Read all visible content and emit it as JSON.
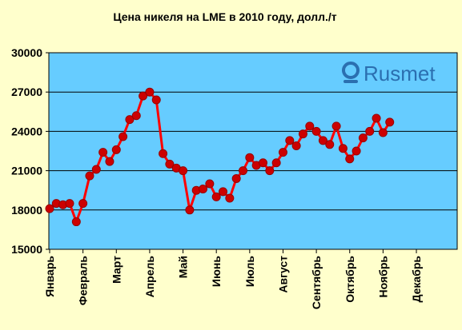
{
  "chart_data": {
    "type": "line",
    "title": "Цена никеля на LME в 2010 году, долл./т",
    "xlabel": "",
    "ylabel": "",
    "ylim": [
      15000,
      30000
    ],
    "yticks": [
      15000,
      18000,
      21000,
      24000,
      27000,
      30000
    ],
    "ytick_labels": [
      "15000",
      "18000",
      "21000",
      "24000",
      "27000",
      "30000"
    ],
    "grid": true,
    "legend": "none",
    "x_range": [
      0,
      61
    ],
    "month_labels": [
      "Январь",
      "Февраль",
      "Март",
      "Апрель",
      "Май",
      "Июнь",
      "Июль",
      "Август",
      "Сентябрь",
      "Октябрь",
      "Ноябрь",
      "Декабрь"
    ],
    "month_positions": [
      0,
      5,
      10,
      15,
      20,
      25,
      30,
      35,
      40,
      45,
      50,
      55
    ],
    "series": [
      {
        "color": "#ff0000",
        "marker_color": "#cc0000",
        "values": [
          18100,
          18500,
          18400,
          18500,
          17100,
          18500,
          20600,
          21100,
          22400,
          21700,
          22600,
          23600,
          24900,
          25200,
          26700,
          27000,
          26400,
          22300,
          21500,
          21200,
          21000,
          18000,
          19500,
          19600,
          20000,
          19000,
          19400,
          18900,
          20400,
          21000,
          22000,
          21400,
          21600,
          21000,
          21600,
          22400,
          23300,
          22900,
          23800,
          24400,
          24000,
          23300,
          23000,
          24400,
          22700,
          21900,
          22500,
          23500,
          24000,
          25000,
          23900,
          24700
        ]
      }
    ]
  },
  "logo": {
    "text": "Rusmet",
    "color": "#2b6fb0"
  },
  "colors": {
    "plot_background": "#66ccff",
    "page_background": "#ffffcc",
    "line": "#ff0000",
    "marker": "#cc0000"
  }
}
